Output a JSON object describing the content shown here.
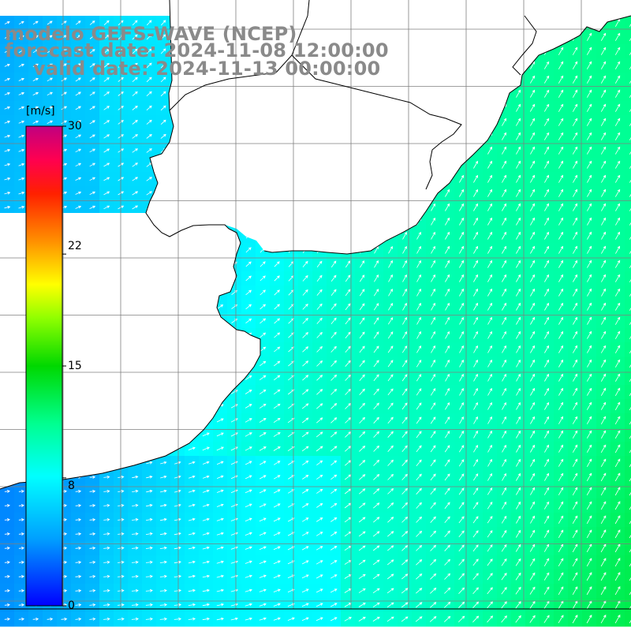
{
  "title": {
    "line1": "modelo GEFS-WAVE (NCEP)",
    "line2": "forecast date: 2024-11-08 12:00:00",
    "line3": "valid date: 2024-11-13 00:00:00"
  },
  "colorbar": {
    "unit": "[m/s]",
    "min": 0,
    "max": 30,
    "tick_labels": [
      "30",
      "22",
      "15",
      "8",
      "0"
    ],
    "tick_values": [
      30,
      22,
      15,
      8,
      0
    ],
    "colors": [
      "#0000ff",
      "#00a8ff",
      "#00ffff",
      "#00ff80",
      "#00e000",
      "#80ff00",
      "#ffff00",
      "#ffa000",
      "#ff4000",
      "#ff0000",
      "#ff0060",
      "#c00080"
    ]
  },
  "colors": {
    "land": "#ffffff",
    "grid": "#7f7f7f",
    "coast": "#000000",
    "arrow": "#ffffff",
    "title": "#8a8a8a"
  },
  "field": {
    "parameter": "wind speed",
    "units": "m/s",
    "speed_range_shown": [
      5,
      13
    ],
    "arrow_direction": "toward northeast over open ocean, toward east in the southwest"
  }
}
